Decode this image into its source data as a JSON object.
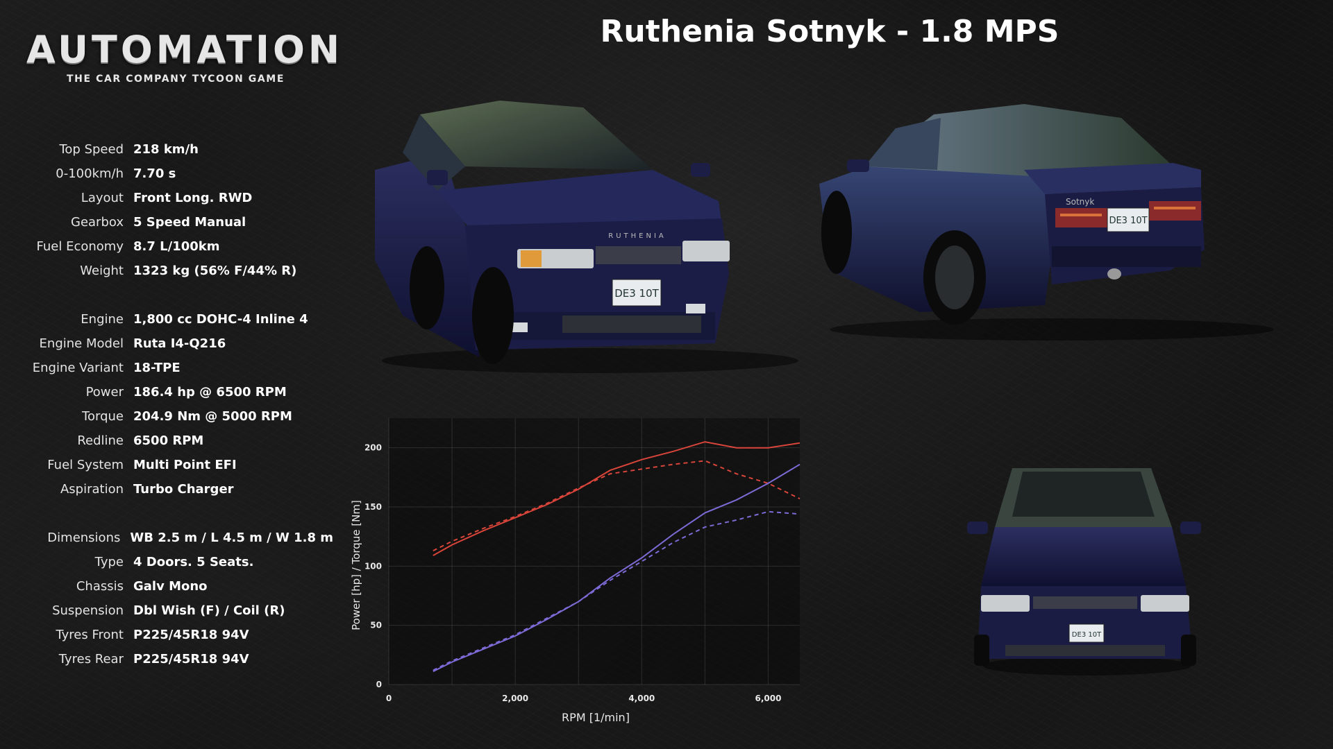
{
  "logo": {
    "title": "AUTOMATION",
    "subtitle": "THE CAR COMPANY TYCOON GAME"
  },
  "car_title": "Ruthenia Sotnyk - 1.8 MPS",
  "specs_group1": [
    {
      "label": "Top Speed",
      "value": "218 km/h"
    },
    {
      "label": "0-100km/h",
      "value": "7.70 s"
    },
    {
      "label": "Layout",
      "value": "Front Long. RWD"
    },
    {
      "label": "Gearbox",
      "value": "5 Speed Manual"
    },
    {
      "label": "Fuel Economy",
      "value": "8.7 L/100km"
    },
    {
      "label": "Weight",
      "value": "1323 kg (56% F/44% R)"
    }
  ],
  "specs_group2": [
    {
      "label": "Engine",
      "value": "1,800 cc DOHC-4 Inline 4"
    },
    {
      "label": "Engine Model",
      "value": "Ruta I4-Q216"
    },
    {
      "label": "Engine Variant",
      "value": "18-TPE"
    },
    {
      "label": "Power",
      "value": "186.4 hp @ 6500 RPM"
    },
    {
      "label": "Torque",
      "value": "204.9 Nm @ 5000 RPM"
    },
    {
      "label": "Redline",
      "value": "6500 RPM"
    },
    {
      "label": "Fuel System",
      "value": "Multi Point EFI"
    },
    {
      "label": "Aspiration",
      "value": "Turbo Charger"
    }
  ],
  "specs_group3": [
    {
      "label": "Dimensions",
      "value": "WB 2.5 m / L 4.5 m / W 1.8 m"
    },
    {
      "label": "Type",
      "value": "4 Doors. 5 Seats."
    },
    {
      "label": "Chassis",
      "value": "Galv Mono"
    },
    {
      "label": "Suspension",
      "value": "Dbl Wish (F) / Coil (R)"
    },
    {
      "label": "Tyres Front",
      "value": "P225/45R18 94V"
    },
    {
      "label": "Tyres Rear",
      "value": "P225/45R18  94V"
    }
  ],
  "car_views": {
    "badge_front": "RUTHENIA",
    "plate": "DE3 10T",
    "badge_rear": "Sotnyk",
    "color_body": "#1d1f45",
    "color_glass": "#3a4a45"
  },
  "chart_data": {
    "type": "line",
    "xlabel": "RPM [1/min]",
    "ylabel": "Power [hp] / Torque [Nm]",
    "xlim": [
      0,
      6500
    ],
    "ylim": [
      0,
      225
    ],
    "x_ticks": [
      0,
      2000,
      4000,
      6000
    ],
    "x_tick_labels": [
      "0",
      "2,000",
      "4,000",
      "6,000"
    ],
    "y_ticks": [
      0,
      50,
      100,
      150,
      200
    ],
    "y_tick_labels": [
      "0",
      "50",
      "100",
      "150",
      "200"
    ],
    "grid": true,
    "series": [
      {
        "color": "#d9453a",
        "dash": false,
        "x": [
          700,
          1000,
          1500,
          2000,
          2500,
          3000,
          3500,
          4000,
          4500,
          5000,
          5500,
          6000,
          6500
        ],
        "y": [
          109,
          118,
          130,
          141,
          152,
          165,
          181,
          190,
          197,
          205,
          200,
          200,
          204
        ]
      },
      {
        "color": "#d9453a",
        "dash": true,
        "x": [
          700,
          1000,
          1500,
          2000,
          2500,
          3000,
          3500,
          4000,
          4500,
          5000,
          5500,
          6000,
          6500
        ],
        "y": [
          113,
          121,
          132,
          142,
          153,
          166,
          178,
          182,
          186,
          189,
          178,
          170,
          157
        ]
      },
      {
        "color": "#7e6ad6",
        "dash": false,
        "x": [
          700,
          1000,
          1500,
          2000,
          2500,
          3000,
          3500,
          4000,
          4500,
          5000,
          5500,
          6000,
          6500
        ],
        "y": [
          11,
          19,
          30,
          41,
          55,
          70,
          90,
          107,
          127,
          145,
          156,
          170,
          186
        ]
      },
      {
        "color": "#7e6ad6",
        "dash": true,
        "x": [
          700,
          1000,
          1500,
          2000,
          2500,
          3000,
          3500,
          4000,
          4500,
          5000,
          5500,
          6000,
          6500
        ],
        "y": [
          12,
          20,
          31,
          42,
          56,
          70,
          88,
          104,
          120,
          133,
          139,
          146,
          144
        ]
      }
    ]
  }
}
